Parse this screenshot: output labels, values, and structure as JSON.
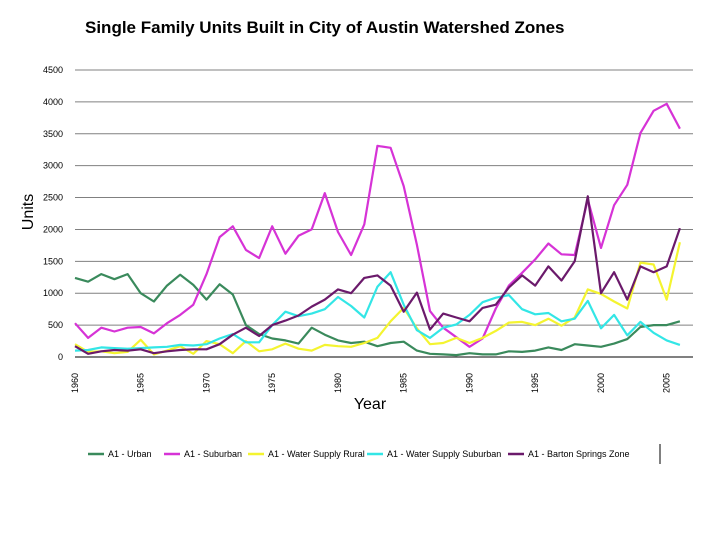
{
  "chart_data": {
    "type": "line",
    "title": "Single Family Units Built in City of Austin Watershed Zones",
    "xlabel": "Year",
    "ylabel": "Units",
    "ylim": [
      0,
      4500
    ],
    "xlim": [
      1960,
      2006
    ],
    "yticks": [
      0,
      500,
      1000,
      1500,
      2000,
      2500,
      3000,
      3500,
      4000,
      4500
    ],
    "xticks": [
      1960,
      1965,
      1970,
      1975,
      1980,
      1985,
      1990,
      1995,
      2000,
      2005
    ],
    "grid": "horizontal",
    "legend_position": "bottom",
    "x": [
      1960,
      1961,
      1962,
      1963,
      1964,
      1965,
      1966,
      1967,
      1968,
      1969,
      1970,
      1971,
      1972,
      1973,
      1974,
      1975,
      1976,
      1977,
      1978,
      1979,
      1980,
      1981,
      1982,
      1983,
      1984,
      1985,
      1986,
      1987,
      1988,
      1989,
      1990,
      1991,
      1992,
      1993,
      1994,
      1995,
      1996,
      1997,
      1998,
      1999,
      2000,
      2001,
      2002,
      2003,
      2004,
      2005,
      2006
    ],
    "series": [
      {
        "name": "A1 - Urban",
        "color": "#3a8a5c",
        "values": [
          1240,
          1180,
          1300,
          1220,
          1300,
          1000,
          870,
          1120,
          1290,
          1130,
          900,
          1140,
          980,
          500,
          360,
          290,
          260,
          210,
          460,
          350,
          260,
          220,
          240,
          170,
          220,
          240,
          100,
          50,
          40,
          30,
          60,
          40,
          40,
          90,
          80,
          100,
          150,
          110,
          200,
          180,
          160,
          210,
          280,
          470,
          500,
          500,
          560
        ]
      },
      {
        "name": "A1 - Suburban",
        "color": "#d633d6",
        "values": [
          530,
          300,
          460,
          400,
          460,
          470,
          370,
          530,
          660,
          820,
          1300,
          1880,
          2050,
          1680,
          1550,
          2050,
          1620,
          1900,
          2000,
          2570,
          1960,
          1600,
          2080,
          3310,
          3280,
          2680,
          1760,
          720,
          460,
          310,
          160,
          290,
          760,
          1120,
          1320,
          1530,
          1780,
          1610,
          1600,
          2470,
          1710,
          2380,
          2700,
          3510,
          3860,
          3970,
          3580
        ]
      },
      {
        "name": "A1 - Water Supply Rural",
        "color": "#f4f430",
        "values": [
          200,
          80,
          90,
          60,
          80,
          270,
          40,
          100,
          170,
          50,
          250,
          200,
          60,
          250,
          90,
          120,
          210,
          130,
          100,
          190,
          170,
          160,
          220,
          300,
          560,
          770,
          450,
          200,
          220,
          300,
          220,
          300,
          410,
          540,
          550,
          500,
          600,
          490,
          620,
          1060,
          990,
          870,
          760,
          1480,
          1450,
          900,
          1800
        ]
      },
      {
        "name": "A1 - Water Supply Suburban",
        "color": "#33e6e6",
        "values": [
          100,
          110,
          150,
          140,
          130,
          140,
          150,
          160,
          190,
          180,
          200,
          290,
          360,
          230,
          230,
          500,
          710,
          640,
          680,
          750,
          940,
          800,
          620,
          1100,
          1330,
          820,
          420,
          300,
          460,
          510,
          660,
          860,
          930,
          970,
          750,
          670,
          690,
          560,
          600,
          880,
          450,
          660,
          340,
          550,
          380,
          260,
          190
        ]
      },
      {
        "name": "A1 - Barton Springs Zone",
        "color": "#6b1a6b",
        "values": [
          170,
          50,
          90,
          110,
          100,
          120,
          60,
          90,
          110,
          120,
          120,
          200,
          350,
          460,
          330,
          500,
          570,
          650,
          790,
          900,
          1060,
          1000,
          1240,
          1280,
          1120,
          710,
          1010,
          430,
          680,
          620,
          560,
          770,
          820,
          1090,
          1280,
          1120,
          1420,
          1200,
          1500,
          2520,
          1000,
          1330,
          900,
          1420,
          1330,
          1420,
          2020
        ]
      }
    ]
  }
}
